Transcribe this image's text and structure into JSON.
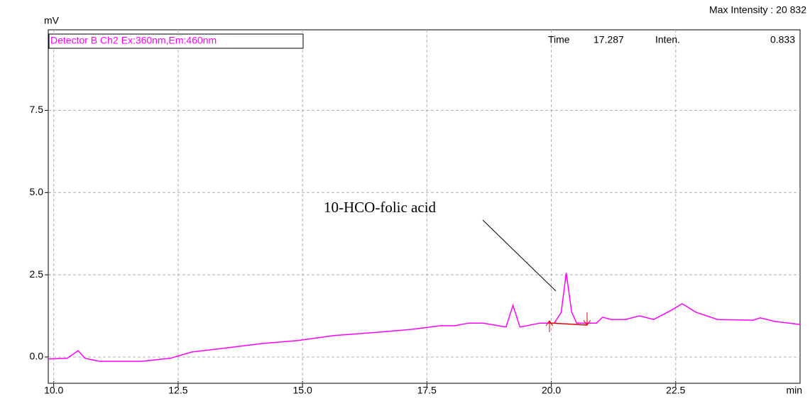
{
  "chart_data": {
    "type": "line",
    "y_label": "mV",
    "x_label": "min",
    "max_intensity": "Max Intensity : 20 832",
    "cursor": {
      "time_label": "Time",
      "time": "17.287",
      "inten_label": "Inten.",
      "inten": "0.833"
    },
    "annotation": "10-HCO-folic acid",
    "x": [
      9.89,
      10.27,
      10.49,
      10.63,
      10.91,
      11.77,
      12.34,
      12.77,
      13.49,
      14.2,
      14.91,
      15.63,
      16.49,
      17.2,
      17.77,
      18.06,
      18.34,
      18.63,
      19.09,
      19.23,
      19.37,
      19.77,
      20.06,
      20.2,
      20.3,
      20.41,
      20.51,
      20.91,
      21.03,
      21.2,
      21.49,
      21.77,
      22.06,
      22.41,
      22.63,
      22.91,
      23.34,
      24.06,
      24.2,
      24.49,
      25.0
    ],
    "series": [
      {
        "name": "Detector B Ch2 Ex:360nm,Em:460nm",
        "color": "#ff00ff",
        "values": [
          -0.06,
          -0.04,
          0.19,
          -0.04,
          -0.13,
          -0.13,
          -0.04,
          0.15,
          0.28,
          0.41,
          0.5,
          0.65,
          0.75,
          0.84,
          0.95,
          0.95,
          1.03,
          1.03,
          0.91,
          1.57,
          0.91,
          1.03,
          1.03,
          1.36,
          2.56,
          1.36,
          1.03,
          1.03,
          1.21,
          1.14,
          1.14,
          1.25,
          1.14,
          1.42,
          1.62,
          1.36,
          1.14,
          1.12,
          1.19,
          1.08,
          0.99
        ]
      }
    ],
    "xlim": [
      9.89,
      25.0
    ],
    "ylim": [
      -0.8,
      9.95
    ],
    "xticks": [
      {
        "value": 10,
        "label": "10.0"
      },
      12.5,
      {
        "value": 15,
        "label": "15.0"
      },
      17.5,
      {
        "value": 20,
        "label": "20.0"
      },
      22.5
    ],
    "yticks": [
      {
        "value": 0,
        "label": "0.0"
      },
      2.5,
      {
        "value": 5,
        "label": "5.0"
      },
      7.5
    ],
    "grid": true
  }
}
